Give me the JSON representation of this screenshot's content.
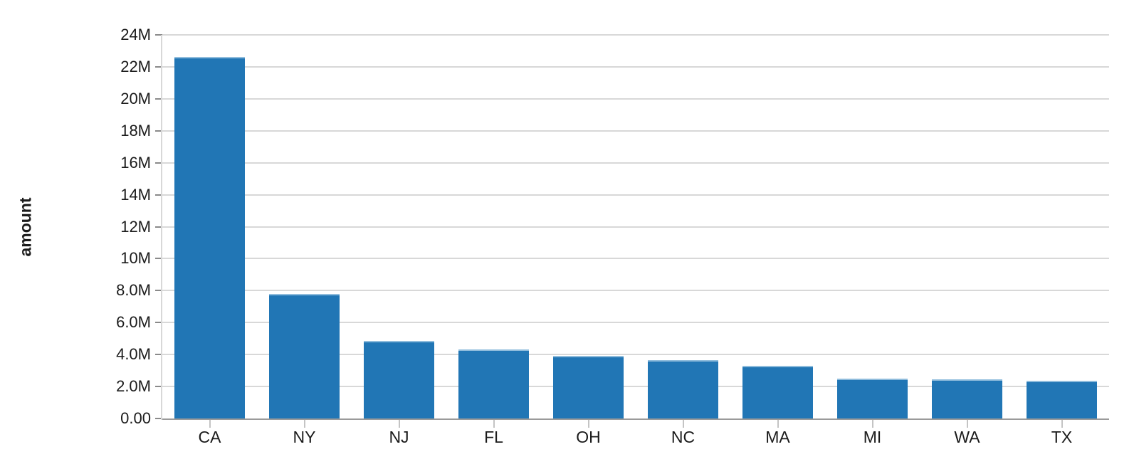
{
  "chart_data": {
    "type": "bar",
    "title": "",
    "xlabel": "",
    "ylabel": "amount",
    "categories": [
      "CA",
      "NY",
      "NJ",
      "FL",
      "OH",
      "NC",
      "MA",
      "MI",
      "WA",
      "TX"
    ],
    "values": [
      22600000,
      7800000,
      4850000,
      4300000,
      3900000,
      3650000,
      3300000,
      2500000,
      2450000,
      2350000
    ],
    "ylim": [
      0,
      24000000
    ],
    "ytick_interval": 2000000,
    "yticks": [
      {
        "value": 0,
        "label": "0.00"
      },
      {
        "value": 2000000,
        "label": "2.0M"
      },
      {
        "value": 4000000,
        "label": "4.0M"
      },
      {
        "value": 6000000,
        "label": "6.0M"
      },
      {
        "value": 8000000,
        "label": "8.0M"
      },
      {
        "value": 10000000,
        "label": "10M"
      },
      {
        "value": 12000000,
        "label": "12M"
      },
      {
        "value": 14000000,
        "label": "14M"
      },
      {
        "value": 16000000,
        "label": "16M"
      },
      {
        "value": 18000000,
        "label": "18M"
      },
      {
        "value": 20000000,
        "label": "20M"
      },
      {
        "value": 22000000,
        "label": "22M"
      },
      {
        "value": 24000000,
        "label": "24M"
      }
    ],
    "grid": "horizontal",
    "legend": "none",
    "colors": {
      "bar": "#2176b5",
      "bar_top_edge": "#8fbcdc",
      "gridline": "#d8d8d8",
      "axis_line": "#d8d8d8",
      "baseline": "#9a9a9a",
      "y_tick": "#8a8a8a",
      "x_tick": "#c4c4c4",
      "label": "#1b1b1b",
      "background": "#ffffff"
    }
  }
}
